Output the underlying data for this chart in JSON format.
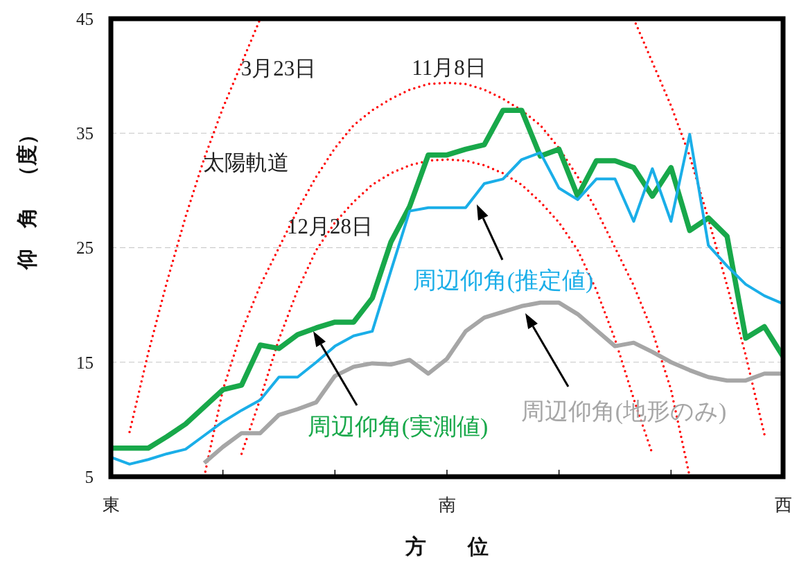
{
  "chart_data": {
    "type": "line",
    "xlabel": "方　　位",
    "ylabel": "仰　角　（度）",
    "annotations": [
      "太陽軌道"
    ],
    "categories": [
      "東",
      null,
      null,
      null,
      null,
      null,
      null,
      null,
      null,
      null,
      null,
      null,
      null,
      null,
      null,
      null,
      null,
      null,
      "南",
      null,
      null,
      null,
      null,
      null,
      null,
      null,
      null,
      null,
      null,
      null,
      null,
      null,
      null,
      null,
      null,
      null,
      "西"
    ],
    "ylim": [
      5,
      45
    ],
    "yticks": [
      5,
      15,
      25,
      35,
      45
    ],
    "grid": "y",
    "series": [
      {
        "name": "3月23日",
        "color": "#ff0000",
        "line_style": "dotted",
        "values": [
          null,
          8.9,
          15.8,
          22.0,
          27.7,
          32.8,
          37.2,
          41.1,
          45.0,
          null,
          null,
          null,
          null,
          null,
          null,
          null,
          null,
          null,
          null,
          null,
          null,
          null,
          null,
          null,
          null,
          null,
          null,
          null,
          45.0,
          41.2,
          37.4,
          33.0,
          27.5,
          21.7,
          15.6,
          8.7,
          null
        ]
      },
      {
        "name": "11月8日",
        "color": "#ff0000",
        "line_style": "dotted",
        "values": [
          null,
          null,
          null,
          null,
          null,
          5.0,
          12.6,
          17.7,
          21.7,
          25.0,
          28.3,
          31.2,
          33.7,
          35.7,
          37.0,
          38.0,
          38.8,
          39.3,
          39.4,
          39.3,
          38.8,
          38.0,
          37.0,
          35.7,
          33.7,
          31.2,
          28.3,
          25.0,
          21.7,
          17.7,
          12.6,
          5.0,
          null,
          null,
          null,
          null,
          null
        ]
      },
      {
        "name": "12月28日",
        "color": "#ff0000",
        "line_style": "dotted",
        "values": [
          null,
          null,
          null,
          null,
          null,
          null,
          null,
          7.0,
          11.8,
          17.0,
          21.3,
          24.8,
          27.2,
          29.0,
          30.5,
          31.5,
          32.2,
          32.6,
          32.7,
          32.6,
          32.2,
          31.5,
          30.5,
          29.0,
          27.2,
          24.8,
          21.3,
          17.0,
          11.8,
          7.0,
          null,
          null,
          null,
          null,
          null,
          null,
          null
        ]
      },
      {
        "name": "周辺仰角(地形のみ)",
        "color": "#a6a6a6",
        "values": [
          null,
          null,
          null,
          null,
          null,
          6.2,
          7.6,
          8.8,
          8.8,
          10.4,
          10.9,
          11.5,
          13.8,
          14.6,
          14.9,
          14.8,
          15.2,
          14.0,
          15.3,
          17.7,
          18.9,
          19.4,
          19.9,
          20.2,
          20.2,
          19.2,
          17.8,
          16.4,
          16.7,
          15.9,
          15.0,
          14.3,
          13.7,
          13.4,
          13.4,
          14.0,
          14.0
        ]
      },
      {
        "name": "周辺仰角(実測値)",
        "color": "#18a84a",
        "values": [
          7.5,
          7.5,
          7.5,
          8.5,
          9.6,
          11.1,
          12.6,
          13.0,
          16.5,
          16.2,
          17.4,
          18.0,
          18.5,
          18.5,
          20.6,
          25.5,
          28.6,
          33.1,
          33.1,
          33.6,
          34.0,
          37.0,
          37.0,
          33.0,
          33.6,
          29.5,
          32.6,
          32.6,
          32.0,
          29.5,
          32.0,
          26.5,
          27.6,
          26.0,
          17.1,
          18.1,
          15.5
        ]
      },
      {
        "name": "周辺仰角(推定値)",
        "color": "#1aaee8",
        "values": [
          6.7,
          6.1,
          6.5,
          7.0,
          7.4,
          8.6,
          9.8,
          10.8,
          11.7,
          13.7,
          13.7,
          15.0,
          16.4,
          17.3,
          17.7,
          23.0,
          28.2,
          28.5,
          28.5,
          28.5,
          30.6,
          31.0,
          32.7,
          33.3,
          30.2,
          29.2,
          31.0,
          31.0,
          27.3,
          31.9,
          27.3,
          34.9,
          25.2,
          23.4,
          21.8,
          20.8,
          20.1
        ]
      }
    ]
  }
}
